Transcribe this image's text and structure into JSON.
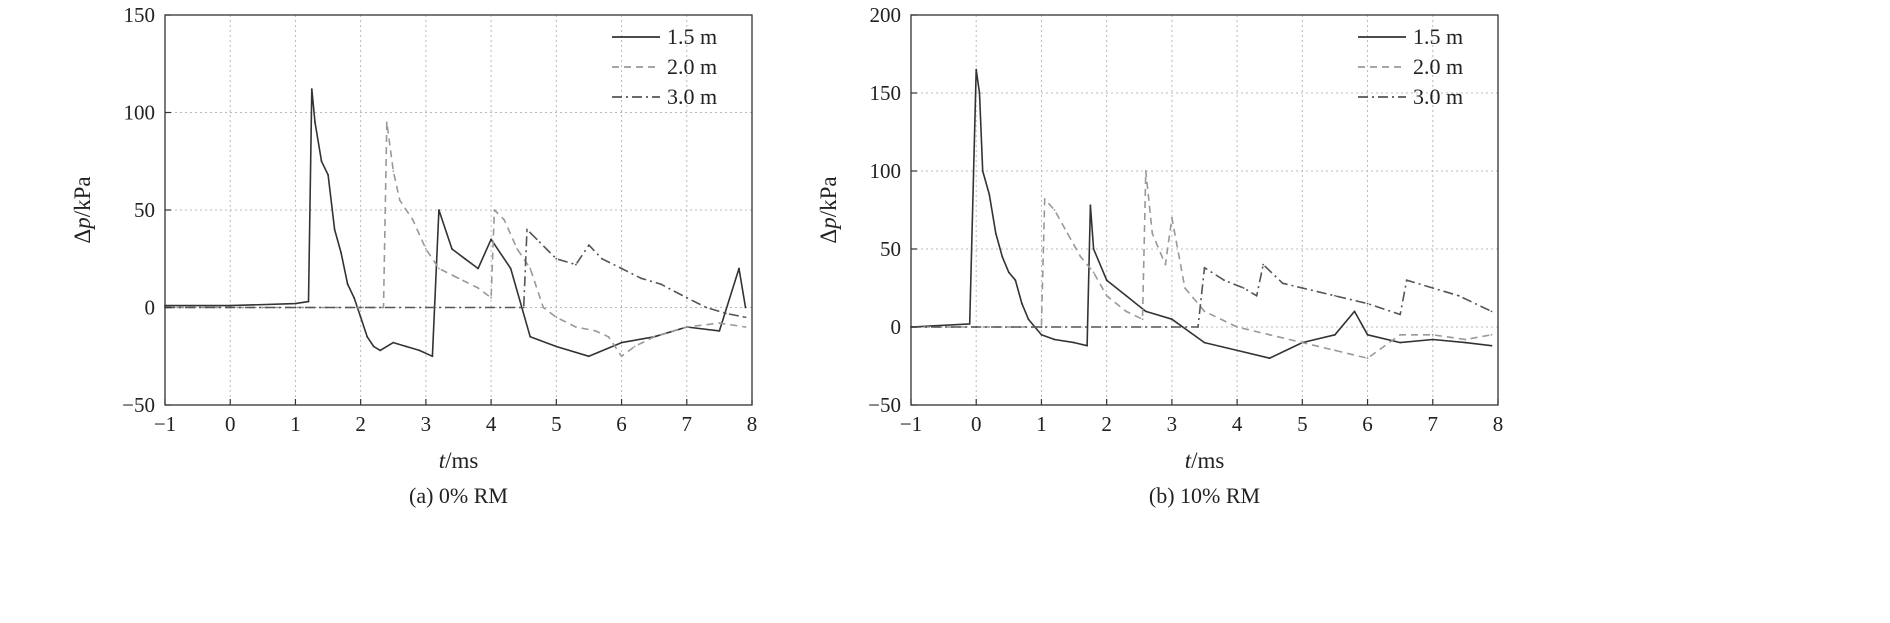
{
  "chart_data": [
    {
      "type": "line",
      "caption": "(a) 0% RM",
      "xlabel_italic": "t",
      "xlabel_unit": "/ms",
      "ylabel_prefix": "Δ",
      "ylabel_italic": "p",
      "ylabel_unit": "/kPa",
      "xlim": [
        -1,
        8
      ],
      "ylim": [
        -50,
        150
      ],
      "xticks": [
        -1,
        0,
        1,
        2,
        3,
        4,
        5,
        6,
        7,
        8
      ],
      "yticks": [
        -50,
        0,
        50,
        100,
        150
      ],
      "grid": true,
      "legend_position": "top-right",
      "series": [
        {
          "name": "1.5 m",
          "style": "solid",
          "color": "#333333",
          "x": [
            -1,
            0,
            1.0,
            1.2,
            1.25,
            1.3,
            1.4,
            1.5,
            1.6,
            1.7,
            1.8,
            1.9,
            2.0,
            2.1,
            2.2,
            2.3,
            2.5,
            2.7,
            2.9,
            3.1,
            3.2,
            3.4,
            3.6,
            3.8,
            4.0,
            4.3,
            4.6,
            5.0,
            5.5,
            6.0,
            6.5,
            7.0,
            7.5,
            7.8,
            7.9
          ],
          "y": [
            1,
            1,
            2,
            3,
            112,
            95,
            75,
            68,
            40,
            28,
            12,
            5,
            -5,
            -15,
            -20,
            -22,
            -18,
            -20,
            -22,
            -25,
            50,
            30,
            25,
            20,
            35,
            20,
            -15,
            -20,
            -25,
            -18,
            -15,
            -10,
            -12,
            20,
            0
          ]
        },
        {
          "name": "2.0 m",
          "style": "dashed",
          "color": "#999999",
          "x": [
            -1,
            0,
            1,
            2,
            2.35,
            2.4,
            2.5,
            2.6,
            2.8,
            3.0,
            3.2,
            3.5,
            3.8,
            4.0,
            4.05,
            4.2,
            4.4,
            4.6,
            4.8,
            5.0,
            5.3,
            5.6,
            5.8,
            6.0,
            6.2,
            6.5,
            7.0,
            7.5,
            7.9
          ],
          "y": [
            0,
            0,
            0,
            0,
            0,
            95,
            70,
            55,
            45,
            30,
            20,
            15,
            10,
            5,
            50,
            45,
            30,
            20,
            0,
            -5,
            -10,
            -12,
            -15,
            -25,
            -20,
            -15,
            -10,
            -8,
            -10
          ]
        },
        {
          "name": "3.0 m",
          "style": "dashdot",
          "color": "#555555",
          "x": [
            -1,
            0,
            1,
            2,
            3,
            4.0,
            4.5,
            4.55,
            4.7,
            5.0,
            5.3,
            5.5,
            5.7,
            6.0,
            6.3,
            6.6,
            7.0,
            7.3,
            7.6,
            7.9
          ],
          "y": [
            0,
            0,
            0,
            0,
            0,
            0,
            0,
            40,
            35,
            25,
            22,
            32,
            25,
            20,
            15,
            12,
            5,
            0,
            -3,
            -5
          ]
        }
      ]
    },
    {
      "type": "line",
      "caption": "(b) 10% RM",
      "xlabel_italic": "t",
      "xlabel_unit": "/ms",
      "ylabel_prefix": "Δ",
      "ylabel_italic": "p",
      "ylabel_unit": "/kPa",
      "xlim": [
        -1,
        8
      ],
      "ylim": [
        -50,
        200
      ],
      "xticks": [
        -1,
        0,
        1,
        2,
        3,
        4,
        5,
        6,
        7,
        8
      ],
      "yticks": [
        -50,
        0,
        50,
        100,
        150,
        200
      ],
      "grid": true,
      "legend_position": "top-right",
      "series": [
        {
          "name": "1.5 m",
          "style": "solid",
          "color": "#333333",
          "x": [
            -1,
            -0.1,
            0.0,
            0.05,
            0.1,
            0.2,
            0.3,
            0.4,
            0.5,
            0.6,
            0.7,
            0.8,
            0.9,
            1.0,
            1.2,
            1.5,
            1.7,
            1.75,
            1.8,
            2.0,
            2.3,
            2.6,
            3.0,
            3.5,
            4.0,
            4.5,
            5.0,
            5.5,
            5.8,
            6.0,
            6.5,
            7.0,
            7.5,
            7.9
          ],
          "y": [
            0,
            2,
            165,
            150,
            100,
            85,
            60,
            45,
            35,
            30,
            15,
            5,
            0,
            -5,
            -8,
            -10,
            -12,
            78,
            50,
            30,
            20,
            10,
            5,
            -10,
            -15,
            -20,
            -10,
            -5,
            10,
            -5,
            -10,
            -8,
            -10,
            -12
          ]
        },
        {
          "name": "2.0 m",
          "style": "dashed",
          "color": "#999999",
          "x": [
            -1,
            0,
            1.0,
            1.05,
            1.2,
            1.4,
            1.6,
            1.8,
            2.0,
            2.3,
            2.55,
            2.6,
            2.7,
            2.9,
            3.0,
            3.2,
            3.5,
            4.0,
            4.5,
            5.0,
            5.5,
            6.0,
            6.5,
            7.0,
            7.5,
            7.9
          ],
          "y": [
            0,
            0,
            0,
            82,
            75,
            60,
            45,
            35,
            20,
            10,
            5,
            100,
            60,
            40,
            70,
            25,
            10,
            0,
            -5,
            -10,
            -15,
            -20,
            -5,
            -5,
            -8,
            -5
          ]
        },
        {
          "name": "3.0 m",
          "style": "dashdot",
          "color": "#555555",
          "x": [
            -1,
            0,
            1,
            2,
            3,
            3.4,
            3.5,
            3.8,
            4.1,
            4.3,
            4.4,
            4.7,
            5.0,
            5.5,
            6.0,
            6.5,
            6.6,
            7.0,
            7.4,
            7.9
          ],
          "y": [
            0,
            0,
            0,
            0,
            0,
            0,
            38,
            30,
            25,
            20,
            40,
            28,
            25,
            20,
            15,
            8,
            30,
            25,
            20,
            10
          ]
        }
      ]
    }
  ]
}
